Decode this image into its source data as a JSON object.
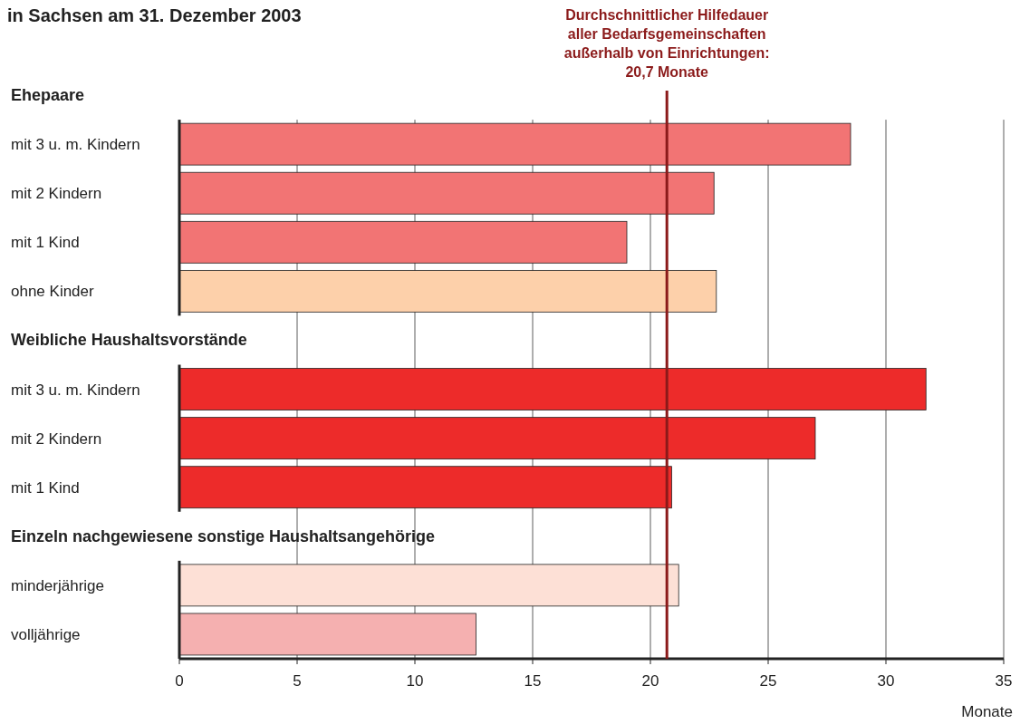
{
  "chart_data": {
    "type": "bar",
    "orientation": "horizontal",
    "title": "in Sachsen am 31. Dezember 2003",
    "xlabel": "Monate",
    "categories": [
      "Ehepaare",
      "mit 3 u. m. Kindern",
      "mit 2 Kindern",
      "mit 1 Kind",
      "ohne Kinder",
      "Weibliche Haushaltsvorstände",
      "mit 3 u. m. Kindern",
      "mit 2 Kindern",
      "mit 1 Kind",
      "Einzeln nachgewiesene sonstige Haushaltsangehörige",
      "minderjährige",
      "volljährige"
    ],
    "values": [
      null,
      28.5,
      22.7,
      19.0,
      22.8,
      null,
      31.7,
      27.0,
      20.9,
      null,
      21.2,
      12.6
    ],
    "colors": [
      null,
      "#f27474",
      "#f27474",
      "#f27474",
      "#fdd0aa",
      null,
      "#ed2b2a",
      "#ed2b2a",
      "#ed2b2a",
      null,
      "#fde0d6",
      "#f5b0b0"
    ],
    "xlim": [
      0,
      35
    ],
    "xticks": [
      0,
      5,
      10,
      15,
      20,
      25,
      30,
      35
    ],
    "grid": "x",
    "ref_lines": [
      {
        "axis": "x",
        "value": 20.7,
        "label": "Durchschnittlicher Hilfedauer\naller Bedarfsgemeinschaften\naußerhalb von Einrichtungen:\n20,7 Monate",
        "color": "#8b1a1a"
      }
    ]
  }
}
